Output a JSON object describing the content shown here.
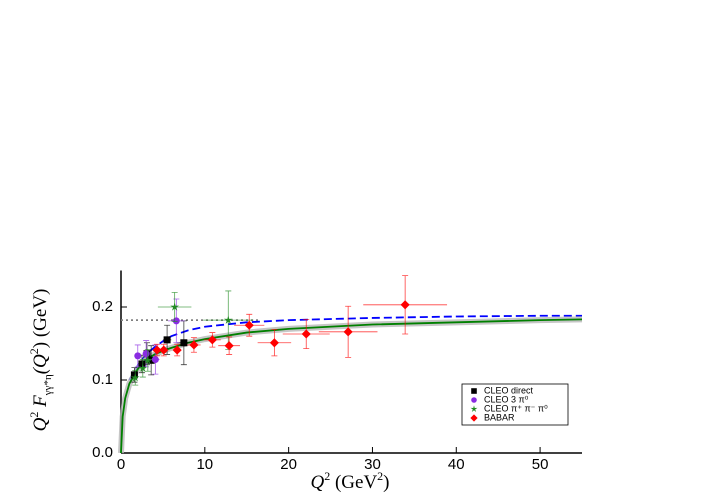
{
  "chart_data": {
    "type": "scatter",
    "x_label": [
      "Q",
      "2",
      " (GeV",
      "2",
      ")"
    ],
    "y_label": [
      "Q",
      "2",
      " F",
      "γγ*η",
      "(Q",
      "2",
      ") (GeV)"
    ],
    "xlim": [
      0,
      55
    ],
    "ylim": [
      0,
      0.25
    ],
    "xticks": [
      0,
      10,
      20,
      30,
      40,
      50
    ],
    "yticks": [
      {
        "value": 0,
        "label": "0.0"
      },
      0.1,
      0.2
    ],
    "legend": "lower right",
    "series": [
      {
        "name": "CLEO direct",
        "color": "#000000",
        "marker": "square",
        "x": [
          1.6,
          2.5,
          3.1,
          3.6,
          5.5,
          7.5
        ],
        "values": [
          0.107,
          0.122,
          0.136,
          0.127,
          0.155,
          0.151
        ],
        "yerr": [
          0.01,
          0.012,
          0.015,
          0.02,
          0.02,
          0.03
        ],
        "xerr": [
          0.2,
          0.3,
          0.3,
          0.4,
          0.5,
          0.8
        ]
      },
      {
        "name": "CLEO 3 π⁰",
        "color": "#8a2be2",
        "marker": "circle",
        "x": [
          2.0,
          3.0,
          4.1,
          6.6
        ],
        "values": [
          0.133,
          0.136,
          0.128,
          0.181
        ],
        "yerr": [
          0.015,
          0.018,
          0.02,
          0.03
        ],
        "xerr": [
          0.3,
          0.4,
          0.5,
          1.0
        ]
      },
      {
        "name": "CLEO π⁺ π⁻ π⁰",
        "color": "#228b22",
        "marker": "star",
        "x": [
          1.7,
          2.6,
          3.2,
          6.4,
          12.8
        ],
        "values": [
          0.103,
          0.116,
          0.127,
          0.2,
          0.182
        ],
        "yerr": [
          0.01,
          0.012,
          0.015,
          0.02,
          0.04
        ],
        "xerr": [
          0.2,
          0.3,
          0.4,
          2.0,
          3.0
        ]
      },
      {
        "name": "BABAR",
        "color": "#ff0000",
        "marker": "diamond",
        "x": [
          4.3,
          5.1,
          6.7,
          8.7,
          10.9,
          12.9,
          15.3,
          18.3,
          22.1,
          27.1,
          33.9
        ],
        "values": [
          0.141,
          0.141,
          0.141,
          0.148,
          0.155,
          0.147,
          0.175,
          0.151,
          0.163,
          0.166,
          0.203
        ],
        "yerr": [
          0.008,
          0.008,
          0.008,
          0.01,
          0.01,
          0.012,
          0.015,
          0.018,
          0.02,
          0.035,
          0.04
        ],
        "xerr": [
          0.3,
          0.4,
          0.5,
          0.8,
          1.0,
          1.3,
          1.8,
          2.0,
          2.8,
          3.5,
          5.0
        ]
      }
    ],
    "curves": [
      {
        "color": "#808080",
        "dash": "dotted",
        "x": [
          0,
          16.6
        ],
        "values": [
          0.182,
          0.182
        ]
      },
      {
        "color": "#0000ff",
        "dash": "dashed",
        "x": [
          1,
          2,
          3,
          4,
          5,
          6,
          8,
          10,
          15,
          20,
          30,
          40,
          50,
          55
        ],
        "values": [
          0.1,
          0.12,
          0.135,
          0.145,
          0.153,
          0.16,
          0.168,
          0.173,
          0.179,
          0.182,
          0.185,
          0.187,
          0.188,
          0.188
        ]
      },
      {
        "color": "#008000",
        "dash": "solid",
        "x": [
          0,
          0.2,
          0.5,
          1,
          2,
          3,
          4,
          5,
          6,
          8,
          10,
          15,
          20,
          30,
          40,
          50,
          55
        ],
        "values": [
          0,
          0.05,
          0.075,
          0.095,
          0.115,
          0.128,
          0.135,
          0.14,
          0.144,
          0.151,
          0.156,
          0.165,
          0.17,
          0.176,
          0.179,
          0.182,
          0.183
        ]
      }
    ]
  }
}
